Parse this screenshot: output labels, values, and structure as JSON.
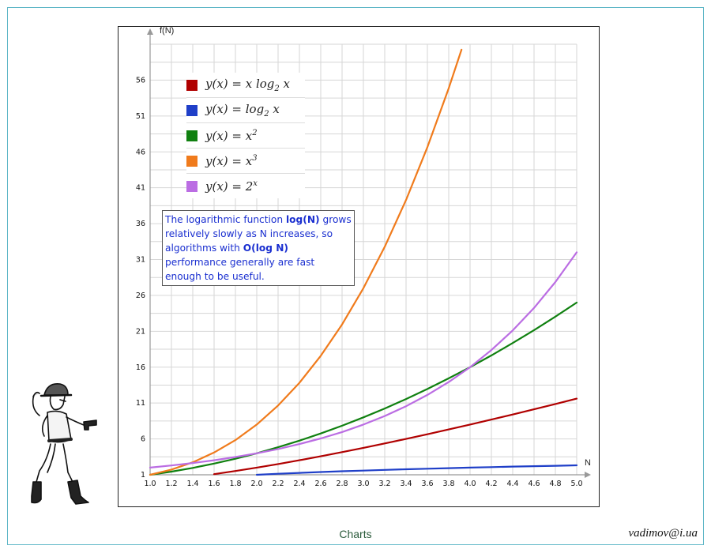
{
  "chart_data": {
    "type": "line",
    "x_axis_label": "N",
    "y_axis_label": "f(N)",
    "xlim": [
      1.0,
      5.0
    ],
    "ylim": [
      1,
      61
    ],
    "x_ticks": [
      "1.0",
      "1.2",
      "1.4",
      "1.6",
      "1.8",
      "2.0",
      "2.2",
      "2.4",
      "2.6",
      "2.8",
      "3.0",
      "3.2",
      "3.4",
      "3.6",
      "3.8",
      "4.0",
      "4.2",
      "4.4",
      "4.6",
      "4.8",
      "5.0"
    ],
    "y_ticks": [
      "1",
      "6",
      "11",
      "16",
      "21",
      "26",
      "31",
      "36",
      "41",
      "46",
      "51",
      "56"
    ],
    "grid": true,
    "legend_position": "top-left",
    "series": [
      {
        "name_parts": [
          "y(x) = x log",
          "2",
          " x"
        ],
        "color": "#b00000",
        "x": [
          1.6,
          1.8,
          2.0,
          2.2,
          2.4,
          2.6,
          2.8,
          3.0,
          3.2,
          3.4,
          3.6,
          3.8,
          4.0,
          4.2,
          4.4,
          4.6,
          4.8,
          5.0
        ],
        "y": [
          1.09,
          1.53,
          2.0,
          2.5,
          3.03,
          3.58,
          4.16,
          4.75,
          5.37,
          6.0,
          6.65,
          7.32,
          8.0,
          8.7,
          9.4,
          10.13,
          10.86,
          11.61
        ]
      },
      {
        "name_parts": [
          "y(x) = log",
          "2",
          " x"
        ],
        "color": "#1f3fc8",
        "x": [
          2.0,
          2.2,
          2.4,
          2.6,
          2.8,
          3.0,
          3.2,
          3.4,
          3.6,
          3.8,
          4.0,
          4.2,
          4.4,
          4.6,
          4.8,
          5.0
        ],
        "y": [
          1.0,
          1.14,
          1.26,
          1.38,
          1.49,
          1.58,
          1.68,
          1.77,
          1.85,
          1.93,
          2.0,
          2.07,
          2.14,
          2.2,
          2.26,
          2.32
        ]
      },
      {
        "name_parts": [
          "y(x) = x",
          "2",
          ""
        ],
        "color": "#108010",
        "x": [
          1.0,
          1.2,
          1.4,
          1.6,
          1.8,
          2.0,
          2.2,
          2.4,
          2.6,
          2.8,
          3.0,
          3.2,
          3.4,
          3.6,
          3.8,
          4.0,
          4.2,
          4.4,
          4.6,
          4.8,
          5.0
        ],
        "y": [
          1.0,
          1.44,
          1.96,
          2.56,
          3.24,
          4.0,
          4.84,
          5.76,
          6.76,
          7.84,
          9.0,
          10.24,
          11.56,
          12.96,
          14.44,
          16.0,
          17.64,
          19.36,
          21.16,
          23.04,
          25.0
        ]
      },
      {
        "name_parts": [
          "y(x) = x",
          "3",
          ""
        ],
        "color": "#f07b1c",
        "x": [
          1.0,
          1.2,
          1.4,
          1.6,
          1.8,
          2.0,
          2.2,
          2.4,
          2.6,
          2.8,
          3.0,
          3.2,
          3.4,
          3.6,
          3.8,
          3.92
        ],
        "y": [
          1.0,
          1.73,
          2.74,
          4.1,
          5.83,
          8.0,
          10.65,
          13.82,
          17.58,
          21.95,
          27.0,
          32.77,
          39.3,
          46.66,
          54.87,
          60.24
        ]
      },
      {
        "name_parts": [
          "y(x) = 2",
          "x",
          ""
        ],
        "color": "#bb6de3",
        "x": [
          1.0,
          1.2,
          1.4,
          1.6,
          1.8,
          2.0,
          2.2,
          2.4,
          2.6,
          2.8,
          3.0,
          3.2,
          3.4,
          3.6,
          3.8,
          4.0,
          4.2,
          4.4,
          4.6,
          4.8,
          5.0
        ],
        "y": [
          2.0,
          2.3,
          2.64,
          3.03,
          3.48,
          4.0,
          4.59,
          5.28,
          6.06,
          6.96,
          8.0,
          9.19,
          10.56,
          12.13,
          13.93,
          16.0,
          18.38,
          21.11,
          24.25,
          27.86,
          32.0
        ]
      }
    ],
    "annotation": {
      "parts": [
        {
          "text": "The logarithmic function ",
          "bold": false
        },
        {
          "text": "log(N)",
          "bold": true
        },
        {
          "text": " grows relatively slowly as N increases, so algorithms with ",
          "bold": false
        },
        {
          "text": "O(log N)",
          "bold": true
        },
        {
          "text": " performance generally are fast enough to be useful.",
          "bold": false
        }
      ],
      "color": "#1a2fd0"
    }
  },
  "footer": {
    "caption": "Charts",
    "email": "vadimov@i.ua"
  },
  "decoration": {
    "figure_icon": "soldier-with-pistol-sketch"
  }
}
